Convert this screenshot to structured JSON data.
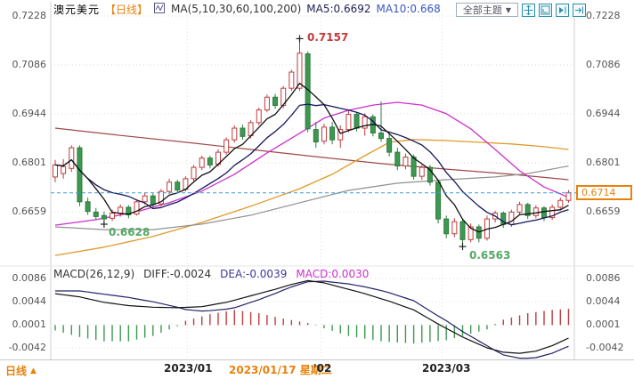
{
  "header": {
    "symbol": "澳元美元",
    "period_tag": "【日线】",
    "ma_label": "MA(5,10,30,60,100,200)",
    "ma5_label": "MA5:0.6692",
    "ma10_label": "MA10:0.668",
    "themes_dropdown": "全部主题",
    "dropdown_arrow": "▼"
  },
  "toolbar": {
    "icons": [
      "crosshair-icon",
      "fit-chart-icon",
      "play-forward-icon",
      "export-right-icon"
    ]
  },
  "price_axis_labels": [
    "0.7228",
    "0.7086",
    "0.6944",
    "0.6801",
    "0.6659"
  ],
  "macd_axis_labels": [
    "0.0086",
    "0.0044",
    "0.0001",
    "-0.0042"
  ],
  "current_price": "0.6714",
  "annotations": {
    "high": "0.7157",
    "low_left": "0.6628",
    "low_right": "0.6563"
  },
  "macd_header": {
    "title": "MACD(26,12,9)",
    "diff": "DIFF:-0.0024",
    "dea": "DEA:-0.0039",
    "macd": "MACD:0.0030"
  },
  "x_axis": {
    "jan": "2023/01",
    "crosshair_date": "2023/01/17 星期二",
    "feb": "'02",
    "mar": "2023/03"
  },
  "footer": {
    "period": "日线",
    "arrow": "▲"
  },
  "chart_data": {
    "type": "candlestick",
    "title": "澳元美元 日线 (AUD/USD daily)",
    "y_ticks": [
      0.7228,
      0.7086,
      0.6944,
      0.6801,
      0.6659
    ],
    "last_price": 0.6714,
    "high_annotation": 0.7157,
    "low_annotation_left": 0.6628,
    "low_annotation_right": 0.6563,
    "x_gridline_indices": [
      16.2,
      32.6,
      47.5
    ],
    "annotation_indices": {
      "high": 30,
      "low_left": 6,
      "low_right": 50
    },
    "candles_ohlc": [
      [
        0.676,
        0.681,
        0.6745,
        0.6795
      ],
      [
        0.677,
        0.6812,
        0.6755,
        0.679
      ],
      [
        0.6785,
        0.6852,
        0.6775,
        0.6845
      ],
      [
        0.6845,
        0.6852,
        0.6675,
        0.6688
      ],
      [
        0.6688,
        0.67,
        0.665,
        0.666
      ],
      [
        0.6658,
        0.667,
        0.6635,
        0.6645
      ],
      [
        0.6648,
        0.666,
        0.6628,
        0.6638
      ],
      [
        0.664,
        0.6665,
        0.6632,
        0.6655
      ],
      [
        0.6655,
        0.668,
        0.6645,
        0.6672
      ],
      [
        0.6672,
        0.6678,
        0.664,
        0.665
      ],
      [
        0.6652,
        0.6695,
        0.6648,
        0.6688
      ],
      [
        0.6688,
        0.6715,
        0.668,
        0.6705
      ],
      [
        0.6705,
        0.6712,
        0.6672,
        0.668
      ],
      [
        0.6682,
        0.6725,
        0.6675,
        0.6718
      ],
      [
        0.6718,
        0.6755,
        0.671,
        0.6745
      ],
      [
        0.6745,
        0.6752,
        0.6712,
        0.6722
      ],
      [
        0.6724,
        0.6762,
        0.6718,
        0.6755
      ],
      [
        0.6755,
        0.6795,
        0.6748,
        0.6788
      ],
      [
        0.6788,
        0.6822,
        0.678,
        0.6815
      ],
      [
        0.6815,
        0.6822,
        0.6785,
        0.6795
      ],
      [
        0.6797,
        0.684,
        0.679,
        0.6832
      ],
      [
        0.6832,
        0.6875,
        0.6825,
        0.6868
      ],
      [
        0.6868,
        0.691,
        0.686,
        0.6902
      ],
      [
        0.6902,
        0.6912,
        0.6868,
        0.6878
      ],
      [
        0.688,
        0.6925,
        0.6872,
        0.6918
      ],
      [
        0.6918,
        0.6962,
        0.691,
        0.6955
      ],
      [
        0.6955,
        0.7,
        0.6948,
        0.6992
      ],
      [
        0.6992,
        0.7002,
        0.6958,
        0.6968
      ],
      [
        0.6968,
        0.7025,
        0.696,
        0.7018
      ],
      [
        0.7018,
        0.7072,
        0.701,
        0.7065
      ],
      [
        0.7018,
        0.7157,
        0.701,
        0.712
      ],
      [
        0.7118,
        0.7125,
        0.689,
        0.69
      ],
      [
        0.6898,
        0.692,
        0.6845,
        0.6862
      ],
      [
        0.6864,
        0.6915,
        0.6855,
        0.6905
      ],
      [
        0.6905,
        0.692,
        0.6855,
        0.6868
      ],
      [
        0.6868,
        0.691,
        0.6845,
        0.6898
      ],
      [
        0.6898,
        0.6952,
        0.689,
        0.6942
      ],
      [
        0.6942,
        0.695,
        0.6892,
        0.6902
      ],
      [
        0.6902,
        0.6945,
        0.688,
        0.6935
      ],
      [
        0.6935,
        0.6942,
        0.6878,
        0.6888
      ],
      [
        0.6888,
        0.698,
        0.6862,
        0.6872
      ],
      [
        0.6872,
        0.689,
        0.682,
        0.6832
      ],
      [
        0.6832,
        0.6845,
        0.678,
        0.6792
      ],
      [
        0.6792,
        0.6828,
        0.6782,
        0.6818
      ],
      [
        0.6818,
        0.6825,
        0.6752,
        0.6762
      ],
      [
        0.6762,
        0.6795,
        0.6752,
        0.6788
      ],
      [
        0.6788,
        0.6795,
        0.6735,
        0.6745
      ],
      [
        0.6745,
        0.6752,
        0.6625,
        0.6638
      ],
      [
        0.6638,
        0.6648,
        0.6582,
        0.6595
      ],
      [
        0.6595,
        0.664,
        0.6585,
        0.663
      ],
      [
        0.663,
        0.6638,
        0.6563,
        0.6578
      ],
      [
        0.6578,
        0.6625,
        0.657,
        0.6615
      ],
      [
        0.6615,
        0.6622,
        0.657,
        0.6582
      ],
      [
        0.6582,
        0.6648,
        0.6575,
        0.6638
      ],
      [
        0.6638,
        0.6662,
        0.6628,
        0.6655
      ],
      [
        0.6655,
        0.666,
        0.6612,
        0.6622
      ],
      [
        0.6622,
        0.6665,
        0.6615,
        0.6658
      ],
      [
        0.6658,
        0.6688,
        0.665,
        0.668
      ],
      [
        0.668,
        0.6685,
        0.6638,
        0.6648
      ],
      [
        0.6648,
        0.6678,
        0.664,
        0.667
      ],
      [
        0.667,
        0.6675,
        0.6632,
        0.6642
      ],
      [
        0.6642,
        0.668,
        0.6635,
        0.6672
      ],
      [
        0.6672,
        0.67,
        0.6665,
        0.6692
      ],
      [
        0.6692,
        0.6722,
        0.6685,
        0.6714
      ]
    ],
    "overlays": {
      "ma30": [
        [
          0,
          0.662
        ],
        [
          5,
          0.6636
        ],
        [
          10,
          0.6659
        ],
        [
          14,
          0.6685
        ],
        [
          18,
          0.6719
        ],
        [
          22,
          0.6768
        ],
        [
          26,
          0.683
        ],
        [
          30,
          0.6887
        ],
        [
          33,
          0.6931
        ],
        [
          36,
          0.6954
        ],
        [
          39,
          0.6969
        ],
        [
          42,
          0.6977
        ],
        [
          45,
          0.6969
        ],
        [
          48,
          0.6944
        ],
        [
          51,
          0.69
        ],
        [
          54,
          0.684
        ],
        [
          57,
          0.6778
        ],
        [
          60,
          0.6731
        ],
        [
          62,
          0.6711
        ],
        [
          63,
          0.67
        ]
      ],
      "ma60": [
        [
          0,
          0.6615
        ],
        [
          6,
          0.6607
        ],
        [
          12,
          0.6607
        ],
        [
          18,
          0.6623
        ],
        [
          24,
          0.6649
        ],
        [
          30,
          0.6685
        ],
        [
          36,
          0.6721
        ],
        [
          42,
          0.6742
        ],
        [
          48,
          0.6752
        ],
        [
          54,
          0.676
        ],
        [
          58,
          0.677
        ],
        [
          63,
          0.6792
        ]
      ],
      "ma100": [
        [
          0,
          0.6532
        ],
        [
          6,
          0.6556
        ],
        [
          12,
          0.6587
        ],
        [
          18,
          0.6628
        ],
        [
          24,
          0.6675
        ],
        [
          30,
          0.6726
        ],
        [
          34,
          0.6768
        ],
        [
          38,
          0.6822
        ],
        [
          41,
          0.6861
        ],
        [
          44,
          0.6869
        ],
        [
          48,
          0.6866
        ],
        [
          52,
          0.6861
        ],
        [
          56,
          0.6856
        ],
        [
          60,
          0.6848
        ],
        [
          63,
          0.684
        ]
      ],
      "ma200": [
        [
          0,
          0.6902
        ],
        [
          8,
          0.6881
        ],
        [
          16,
          0.6861
        ],
        [
          24,
          0.684
        ],
        [
          32,
          0.6819
        ],
        [
          40,
          0.6799
        ],
        [
          48,
          0.6783
        ],
        [
          56,
          0.6768
        ],
        [
          63,
          0.6752
        ]
      ]
    },
    "macd": {
      "params": [
        26,
        12,
        9
      ],
      "y_ticks": [
        0.0086,
        0.0044,
        0.0001,
        -0.0042
      ],
      "last_values": {
        "diff": -0.0024,
        "dea": -0.0039,
        "macd": 0.003
      },
      "diff_points": [
        [
          0,
          0.0058
        ],
        [
          3,
          0.0052
        ],
        [
          6,
          0.0042
        ],
        [
          9,
          0.0036
        ],
        [
          12,
          0.0033
        ],
        [
          15,
          0.0032
        ],
        [
          18,
          0.0034
        ],
        [
          21,
          0.0042
        ],
        [
          24,
          0.0054
        ],
        [
          27,
          0.0066
        ],
        [
          29,
          0.0075
        ],
        [
          31,
          0.0082
        ],
        [
          33,
          0.0078
        ],
        [
          35,
          0.007
        ],
        [
          38,
          0.0058
        ],
        [
          41,
          0.0044
        ],
        [
          44,
          0.0028
        ],
        [
          47,
          0.0002
        ],
        [
          50,
          -0.0022
        ],
        [
          53,
          -0.0042
        ],
        [
          55,
          -0.005
        ],
        [
          57,
          -0.0052
        ],
        [
          59,
          -0.0048
        ],
        [
          61,
          -0.0038
        ],
        [
          63,
          -0.0024
        ]
      ],
      "hist_points": [
        [
          0,
          -0.001
        ],
        [
          3,
          -0.0022
        ],
        [
          6,
          -0.003
        ],
        [
          9,
          -0.003
        ],
        [
          12,
          -0.002
        ],
        [
          14,
          -0.0008
        ],
        [
          15,
          -0.0002
        ],
        [
          16,
          0.0008
        ],
        [
          19,
          0.002
        ],
        [
          22,
          0.0028
        ],
        [
          25,
          0.0022
        ],
        [
          28,
          0.0012
        ],
        [
          31,
          0.0004
        ],
        [
          33,
          -0.0006
        ],
        [
          36,
          -0.002
        ],
        [
          40,
          -0.003
        ],
        [
          44,
          -0.0034
        ],
        [
          48,
          -0.0028
        ],
        [
          51,
          -0.0016
        ],
        [
          53,
          -0.0008
        ],
        [
          54,
          0.0002
        ],
        [
          55,
          0.001
        ],
        [
          58,
          0.0022
        ],
        [
          61,
          0.0028
        ],
        [
          63,
          0.003
        ]
      ]
    },
    "colors": {
      "up": "#c23b3b",
      "up_fill": "#ffffff",
      "down": "#3d9950",
      "down_stroke": "#2f7a40",
      "ma5": "#111111",
      "ma10": "#16165c",
      "ma30": "#cc2fcc",
      "ma60": "#909090",
      "ma100": "#e09a2a",
      "ma200": "#a04848",
      "last_price_line": "#3a9ad9",
      "accent": "#e8820c",
      "diff_line": "#111111",
      "dea_line": "#22226a",
      "hist_pos": "#c23b3b",
      "hist_neg": "#3d9950"
    }
  }
}
